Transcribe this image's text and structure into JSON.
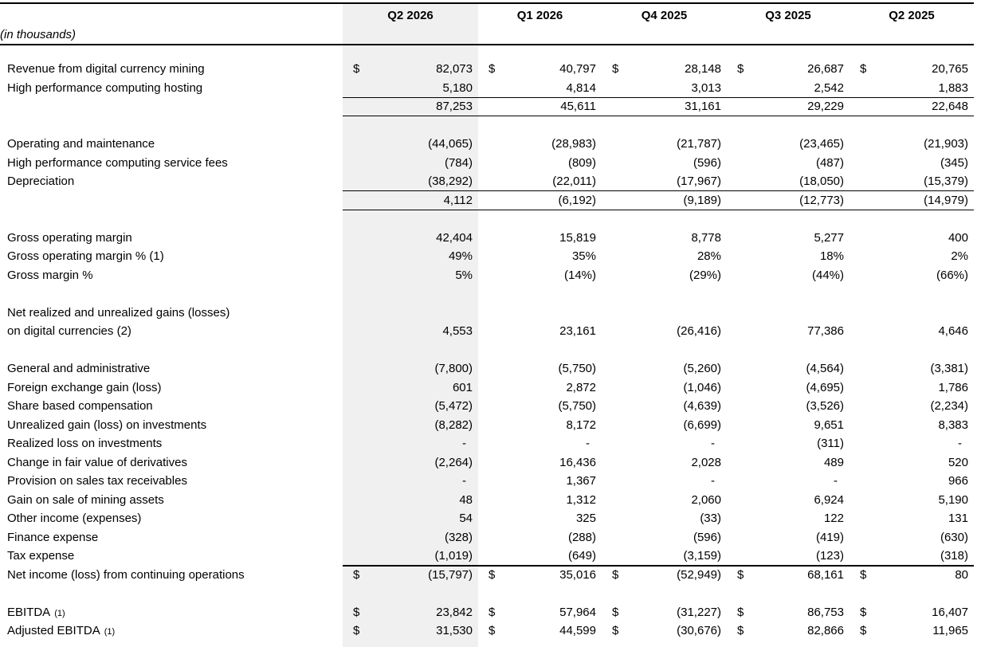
{
  "unit_label": "(in thousands)",
  "highlight": {
    "column": "Q2 2026",
    "color": "#f0f0f0"
  },
  "columns": [
    "Q2 2026",
    "Q1 2026",
    "Q4 2025",
    "Q3 2025",
    "Q2 2025"
  ],
  "rows": [
    {
      "label": "Revenue from digital currency mining",
      "dollar": true,
      "values": [
        "82,073",
        "40,797",
        "28,148",
        "26,687",
        "20,765"
      ]
    },
    {
      "label": "High performance computing hosting",
      "values": [
        "5,180",
        "4,814",
        "3,013",
        "2,542",
        "1,883"
      ],
      "rule": "below"
    },
    {
      "label": "",
      "values": [
        "87,253",
        "45,611",
        "31,161",
        "29,229",
        "22,648"
      ],
      "rule": "below"
    },
    {
      "spacer": true
    },
    {
      "label": "Operating and maintenance",
      "values": [
        "(44,065)",
        "(28,983)",
        "(21,787)",
        "(23,465)",
        "(21,903)"
      ]
    },
    {
      "label": "High performance computing service fees",
      "values": [
        "(784)",
        "(809)",
        "(596)",
        "(487)",
        "(345)"
      ]
    },
    {
      "label": "Depreciation",
      "values": [
        "(38,292)",
        "(22,011)",
        "(17,967)",
        "(18,050)",
        "(15,379)"
      ],
      "rule": "below"
    },
    {
      "label": "",
      "values": [
        "4,112",
        "(6,192)",
        "(9,189)",
        "(12,773)",
        "(14,979)"
      ],
      "rule": "below"
    },
    {
      "spacer": true
    },
    {
      "label": "Gross operating margin",
      "values": [
        "42,404",
        "15,819",
        "8,778",
        "5,277",
        "400"
      ]
    },
    {
      "label": "Gross operating margin % (1)",
      "values": [
        "49%",
        "35%",
        "28%",
        "18%",
        "2%"
      ]
    },
    {
      "label": "Gross margin %",
      "values": [
        "5%",
        "(14%)",
        "(29%)",
        "(44%)",
        "(66%)"
      ]
    },
    {
      "spacer": true
    },
    {
      "label": "Net realized and unrealized gains (losses)"
    },
    {
      "label": "on digital currencies (2)",
      "values": [
        "4,553",
        "23,161",
        "(26,416)",
        "77,386",
        "4,646"
      ]
    },
    {
      "spacer": true
    },
    {
      "label": "General and administrative",
      "values": [
        "(7,800)",
        "(5,750)",
        "(5,260)",
        "(4,564)",
        "(3,381)"
      ]
    },
    {
      "label": "Foreign exchange gain (loss)",
      "values": [
        "601",
        "2,872",
        "(1,046)",
        "(4,695)",
        "1,786"
      ]
    },
    {
      "label": "Share based compensation",
      "values": [
        "(5,472)",
        "(5,750)",
        "(4,639)",
        "(3,526)",
        "(2,234)"
      ]
    },
    {
      "label": "Unrealized gain (loss) on investments",
      "values": [
        "(8,282)",
        "8,172",
        "(6,699)",
        "9,651",
        "8,383"
      ]
    },
    {
      "label": "Realized loss on investments",
      "values": [
        "-",
        "-",
        "-",
        "(311)",
        "-"
      ]
    },
    {
      "label": "Change in fair value of derivatives",
      "values": [
        "(2,264)",
        "16,436",
        "2,028",
        "489",
        "520"
      ]
    },
    {
      "label": "Provision on sales tax receivables",
      "values": [
        "-",
        "1,367",
        "-",
        "-",
        "966"
      ]
    },
    {
      "label": "Gain on sale of mining assets",
      "values": [
        "48",
        "1,312",
        "2,060",
        "6,924",
        "5,190"
      ]
    },
    {
      "label": "Other income (expenses)",
      "values": [
        "54",
        "325",
        "(33)",
        "122",
        "131"
      ]
    },
    {
      "label": "Finance expense",
      "values": [
        "(328)",
        "(288)",
        "(596)",
        "(419)",
        "(630)"
      ]
    },
    {
      "label": "Tax expense",
      "values": [
        "(1,019)",
        "(649)",
        "(3,159)",
        "(123)",
        "(318)"
      ],
      "rule": "below-thick"
    },
    {
      "label": "Net income (loss) from continuing operations",
      "dollar": true,
      "values": [
        "(15,797)",
        "35,016",
        "(52,949)",
        "68,161",
        "80"
      ]
    },
    {
      "spacer": true
    },
    {
      "label": "EBITDA",
      "suffix": "(1)",
      "dollar": true,
      "values": [
        "23,842",
        "57,964",
        "(31,227)",
        "86,753",
        "16,407"
      ]
    },
    {
      "label": "Adjusted EBITDA",
      "suffix": "(1)",
      "dollar": true,
      "values": [
        "31,530",
        "44,599",
        "(30,676)",
        "82,866",
        "11,965"
      ]
    }
  ]
}
